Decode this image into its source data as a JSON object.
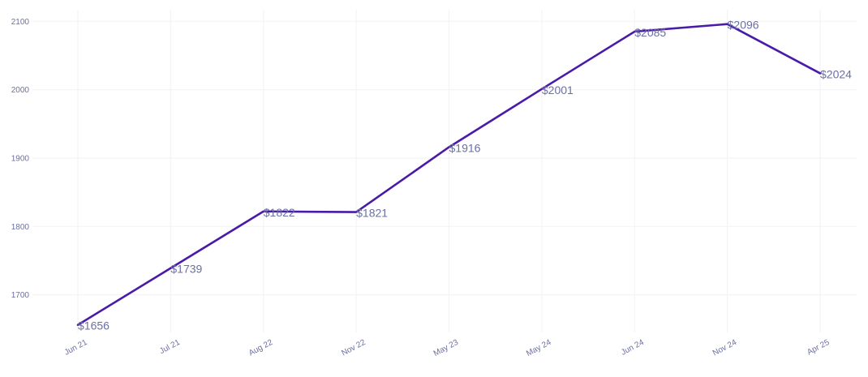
{
  "chart_data": {
    "type": "line",
    "title": "",
    "xlabel": "",
    "ylabel": "",
    "categories": [
      "Jun 21",
      "Jul 21",
      "Aug 22",
      "Nov 22",
      "May 23",
      "May 24",
      "Jun 24",
      "Nov 24",
      "Apr 25"
    ],
    "series": [
      {
        "values": [
          1656,
          1739,
          1822,
          1821,
          1916,
          2001,
          2085,
          2096,
          2024
        ],
        "data_labels": [
          "$1656",
          "$1739",
          "$1822",
          "$1821",
          "$1916",
          "$2001",
          "$2085",
          "$2096",
          "$2024"
        ],
        "color": "#4a1aa8"
      }
    ],
    "ylim": [
      1645,
      2117
    ],
    "yticks": [
      1700,
      1800,
      1900,
      2000,
      2100
    ],
    "ytick_labels": [
      "1700",
      "1800",
      "1900",
      "2000",
      "2100"
    ],
    "grid": true,
    "legend": "none",
    "colors": {
      "line": "#4a1aa8",
      "label_text": "#6b6fa3",
      "grid": "#f4f4f6"
    }
  }
}
